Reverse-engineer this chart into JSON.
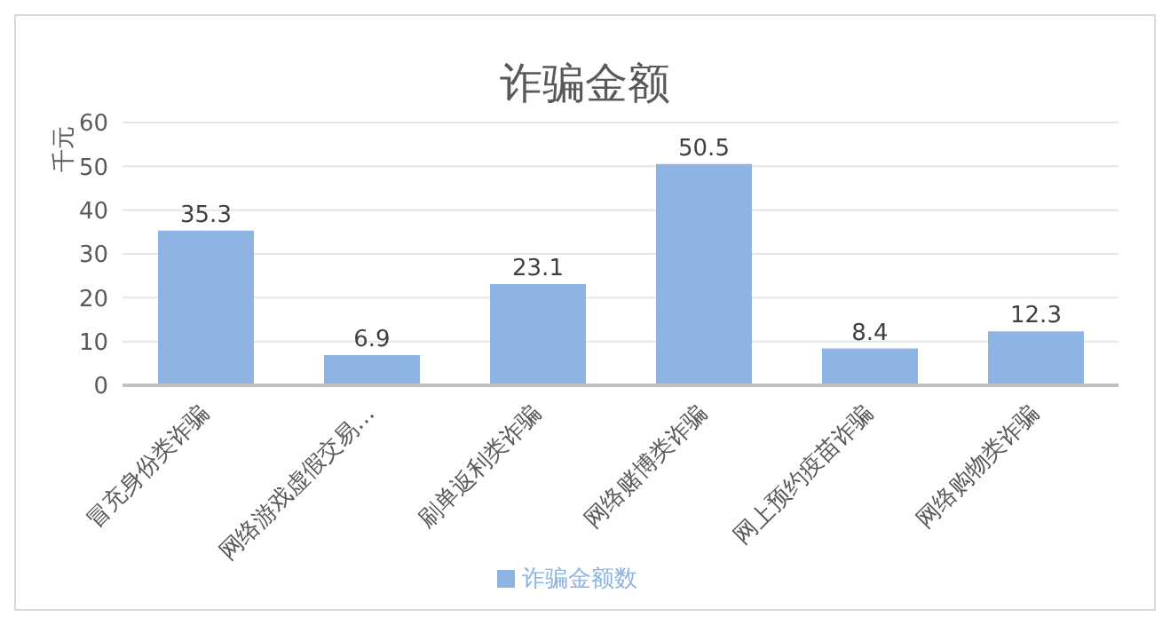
{
  "chart_data": {
    "type": "bar",
    "title": "诈骗金额",
    "ylabel": "千元",
    "categories": [
      "冒充身份类诈骗",
      "网络游戏虚假交易…",
      "刷单返利类诈骗",
      "网络赌博类诈骗",
      "网上预约疫苗诈骗",
      "网络购物类诈骗"
    ],
    "series": [
      {
        "name": "诈骗金额数",
        "color": "#8db4e2",
        "values": [
          35.3,
          6.9,
          23.1,
          50.5,
          8.4,
          12.3
        ]
      }
    ],
    "ylim": [
      0,
      60
    ],
    "yticks": [
      0,
      10,
      20,
      30,
      40,
      50,
      60
    ],
    "grid": "y",
    "legend": "bottom",
    "data_labels": true
  }
}
